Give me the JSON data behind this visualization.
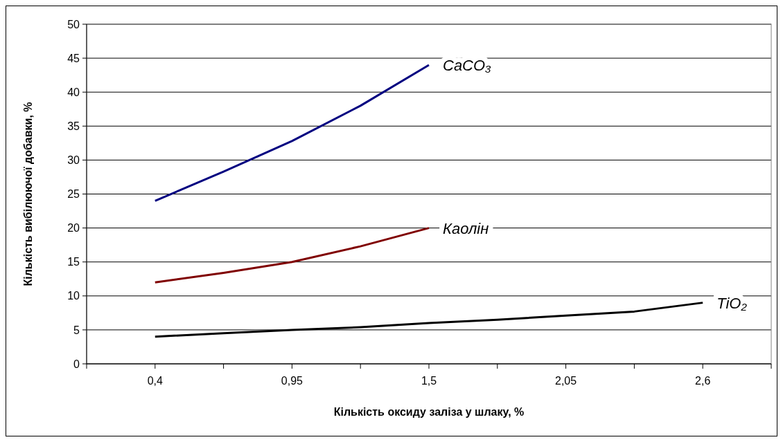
{
  "chart_data": {
    "type": "line",
    "xlabel": "Кількість оксиду заліза у шлаку, %",
    "ylabel": "Кількість вибілюючої добавки, %",
    "xlim": [
      0.125,
      2.875
    ],
    "xticks": [
      {
        "value": 0.125,
        "label": null
      },
      {
        "value": 0.4,
        "label": "0,4"
      },
      {
        "value": 0.675,
        "label": null
      },
      {
        "value": 0.95,
        "label": "0,95"
      },
      {
        "value": 1.225,
        "label": null
      },
      {
        "value": 1.5,
        "label": "1,5"
      },
      {
        "value": 1.775,
        "label": null
      },
      {
        "value": 2.05,
        "label": "2,05"
      },
      {
        "value": 2.325,
        "label": null
      },
      {
        "value": 2.6,
        "label": "2,6"
      },
      {
        "value": 2.875,
        "label": null
      }
    ],
    "ylim": [
      0,
      50
    ],
    "yticks": [
      0,
      5,
      10,
      15,
      20,
      25,
      30,
      35,
      40,
      45,
      50
    ],
    "grid": "y",
    "legend": false,
    "series": [
      {
        "name": "CaCO₃",
        "color": "#000080",
        "x": [
          0.4,
          0.675,
          0.95,
          1.225,
          1.5
        ],
        "values": [
          24,
          28.3,
          32.8,
          38,
          44
        ]
      },
      {
        "name": "Каолін",
        "color": "#800000",
        "x": [
          0.4,
          0.675,
          0.95,
          1.225,
          1.5
        ],
        "values": [
          12,
          13.4,
          15,
          17.3,
          20
        ]
      },
      {
        "name": "TiO₂",
        "color": "#000000",
        "x": [
          0.4,
          0.675,
          0.95,
          1.225,
          1.5,
          1.775,
          2.05,
          2.325,
          2.6
        ],
        "values": [
          4,
          4.5,
          5,
          5.4,
          6,
          6.5,
          7.1,
          7.7,
          9
        ]
      }
    ]
  }
}
